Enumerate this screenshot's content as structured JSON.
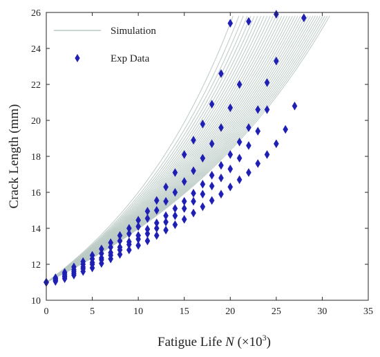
{
  "chart_data": {
    "type": "line",
    "xlabel_prefix": "Fatigue Life ",
    "xlabel_var": "N",
    "xlabel_unit": " (×10",
    "xlabel_exp": "3",
    "xlabel_close": ")",
    "ylabel": "Crack Length (mm)",
    "xlim": [
      0,
      35
    ],
    "ylim": [
      10,
      26
    ],
    "xticks": [
      0,
      5,
      10,
      15,
      20,
      25,
      30,
      35
    ],
    "yticks": [
      10,
      12,
      14,
      16,
      18,
      20,
      22,
      24,
      26
    ],
    "grid": false,
    "legend_position": "top-left",
    "colors": {
      "simulation": "#b9c9c3",
      "exp": "#1f1fb4",
      "axis": "#262626"
    },
    "series": [
      {
        "name": "Simulation",
        "kind": "band",
        "x_start": 0,
        "y_start": 11.0,
        "y_end": 25.8,
        "final_life_range": [
          20.3,
          30.8
        ],
        "curve_count": 34
      },
      {
        "name": "Exp Data",
        "kind": "scatter",
        "marker": "diamond",
        "specimens": [
          {
            "x": [
              0,
              1,
              2,
              3,
              4,
              5,
              6,
              7,
              8,
              9,
              10,
              11,
              12,
              13,
              14,
              15,
              16,
              17,
              18,
              19,
              20
            ],
            "y": [
              11.0,
              11.25,
              11.55,
              11.85,
              12.15,
              12.5,
              12.85,
              13.2,
              13.6,
              14.0,
              14.45,
              14.95,
              15.55,
              16.3,
              17.1,
              18.1,
              18.9,
              19.8,
              20.9,
              22.6,
              25.4
            ]
          },
          {
            "x": [
              0,
              1,
              2,
              3,
              4,
              5,
              6,
              7,
              8,
              9,
              10,
              11,
              12,
              13,
              14,
              15,
              16,
              17,
              18,
              19,
              20,
              21,
              22
            ],
            "y": [
              11.0,
              11.2,
              11.45,
              11.7,
              12.0,
              12.3,
              12.6,
              12.95,
              13.3,
              13.7,
              14.1,
              14.55,
              15.0,
              15.5,
              16.0,
              16.6,
              17.2,
              17.9,
              18.7,
              19.6,
              20.7,
              22.0,
              25.5
            ]
          },
          {
            "x": [
              0,
              1,
              2,
              3,
              4,
              5,
              6,
              7,
              8,
              9,
              10,
              11,
              12,
              13,
              14,
              15,
              16,
              17,
              18,
              19,
              20,
              21,
              22,
              23,
              24,
              25
            ],
            "y": [
              11.0,
              11.15,
              11.35,
              11.6,
              11.85,
              12.1,
              12.35,
              12.65,
              12.95,
              13.25,
              13.6,
              13.95,
              14.3,
              14.7,
              15.1,
              15.5,
              15.95,
              16.45,
              16.95,
              17.5,
              18.1,
              18.8,
              19.6,
              20.6,
              22.1,
              25.9
            ]
          },
          {
            "x": [
              0,
              1,
              2,
              3,
              4,
              5,
              6,
              7,
              8,
              9,
              10,
              11,
              12,
              13,
              14,
              15,
              16,
              17,
              18,
              19,
              20,
              21,
              22,
              23,
              24,
              25
            ],
            "y": [
              11.0,
              11.1,
              11.3,
              11.5,
              11.75,
              12.0,
              12.25,
              12.5,
              12.8,
              13.1,
              13.4,
              13.7,
              14.0,
              14.35,
              14.7,
              15.1,
              15.5,
              15.9,
              16.35,
              16.8,
              17.3,
              17.9,
              18.6,
              19.4,
              20.6,
              23.3
            ]
          },
          {
            "x": [
              0,
              1,
              2,
              3,
              4,
              5,
              6,
              7,
              8,
              9,
              10,
              11,
              12,
              13,
              14,
              15,
              16,
              17,
              18,
              19,
              20,
              21,
              22,
              23,
              24,
              25,
              26,
              27,
              28
            ],
            "y": [
              11.0,
              11.05,
              11.2,
              11.4,
              11.6,
              11.8,
              12.05,
              12.3,
              12.55,
              12.8,
              13.05,
              13.3,
              13.6,
              13.9,
              14.2,
              14.5,
              14.85,
              15.2,
              15.55,
              15.9,
              16.3,
              16.7,
              17.1,
              17.6,
              18.1,
              18.7,
              19.5,
              20.8,
              25.7
            ]
          }
        ]
      }
    ]
  },
  "legend": {
    "simulation_label": "Simulation",
    "exp_label": "Exp Data"
  }
}
